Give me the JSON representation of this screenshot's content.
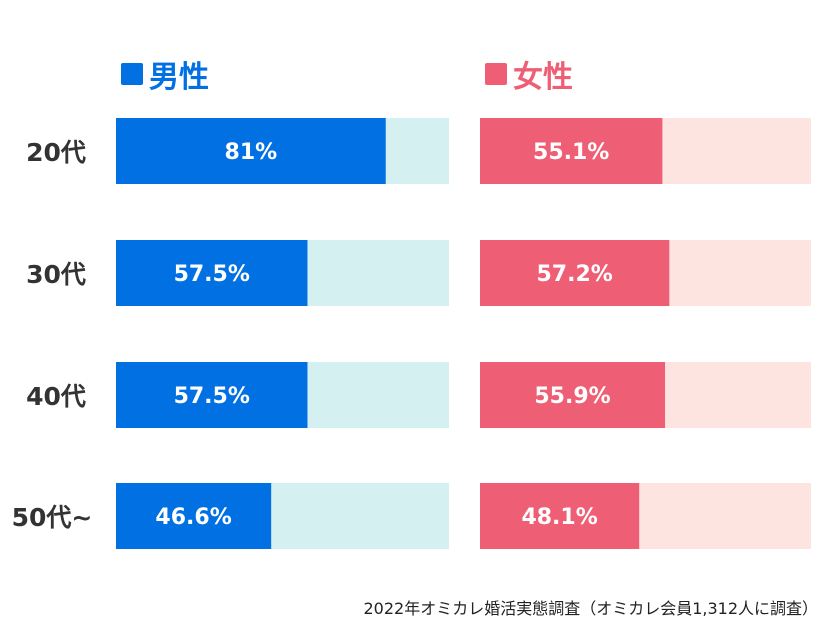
{
  "chart_data": {
    "type": "bar",
    "orientation": "horizontal",
    "stacked_remainder": true,
    "xlim": [
      0,
      100
    ],
    "categories": [
      "20代",
      "30代",
      "40代",
      "50代~"
    ],
    "series": [
      {
        "name": "男性",
        "values": [
          81,
          57.5,
          57.5,
          46.6
        ],
        "labels": [
          "81%",
          "57.5%",
          "57.5%",
          "46.6%"
        ],
        "color": "#0070e3",
        "remainder_color": "#d4f0f0"
      },
      {
        "name": "女性",
        "values": [
          55.1,
          57.2,
          55.9,
          48.1
        ],
        "labels": [
          "55.1%",
          "57.2%",
          "55.9%",
          "48.1%"
        ],
        "color": "#ee5f75",
        "remainder_color": "#fde4e0"
      }
    ],
    "legend_placement": "top",
    "grid": false,
    "source": "2022年オミカレ婚活実態調査（オミカレ会員1,312人に調査）"
  }
}
